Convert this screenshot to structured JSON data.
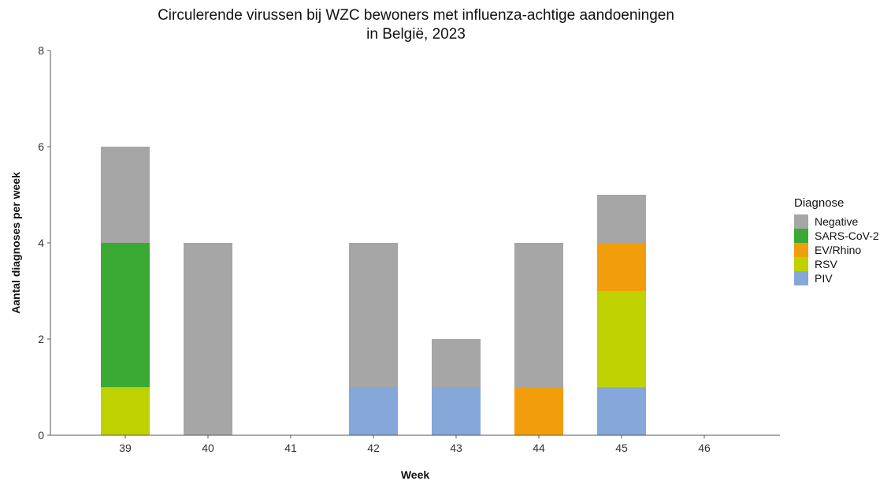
{
  "chart_data": {
    "type": "bar",
    "stacked": true,
    "title": [
      "Circulerende virussen bij WZC bewoners met influenza-achtige aandoeningen",
      "in België, 2023"
    ],
    "xlabel": "Week",
    "ylabel": "Aantal diagnoses per week",
    "categories": [
      "39",
      "40",
      "41",
      "42",
      "43",
      "44",
      "45",
      "46"
    ],
    "ylim": [
      0,
      8
    ],
    "yticks": [
      "0",
      "2",
      "4",
      "6",
      "8"
    ],
    "grid": false,
    "legend": {
      "title": "Diagnose",
      "position": "right",
      "entries": [
        "Negative",
        "SARS-CoV-2",
        "EV/Rhino",
        "RSV",
        "PIV"
      ]
    },
    "stack_order": [
      "PIV",
      "RSV",
      "EV/Rhino",
      "SARS-CoV-2",
      "Negative"
    ],
    "series": [
      {
        "name": "Negative",
        "color": "#a6a6a6",
        "values": [
          2,
          4,
          0,
          3,
          1,
          3,
          1,
          0
        ]
      },
      {
        "name": "SARS-CoV-2",
        "color": "#3aaa35",
        "values": [
          3,
          0,
          0,
          0,
          0,
          0,
          0,
          0
        ]
      },
      {
        "name": "EV/Rhino",
        "color": "#f29e0c",
        "values": [
          0,
          0,
          0,
          0,
          0,
          1,
          1,
          0
        ]
      },
      {
        "name": "RSV",
        "color": "#bfd100",
        "values": [
          1,
          0,
          0,
          0,
          0,
          0,
          2,
          0
        ]
      },
      {
        "name": "PIV",
        "color": "#85a7da",
        "values": [
          0,
          0,
          0,
          1,
          1,
          0,
          1,
          0
        ]
      }
    ]
  }
}
